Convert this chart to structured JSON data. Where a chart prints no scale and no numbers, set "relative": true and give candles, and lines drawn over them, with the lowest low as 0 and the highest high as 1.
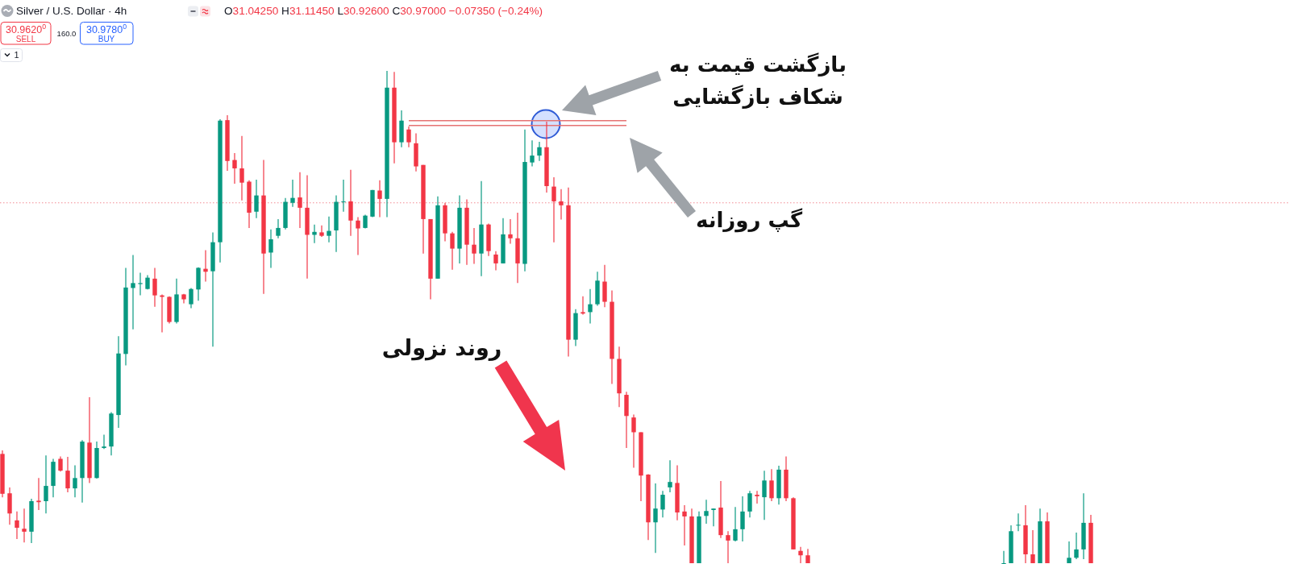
{
  "chart_data": {
    "type": "candlestick",
    "title": "Silver / U.S. Dollar · 4h",
    "subtitle": "O31.04250 H31.11450 L30.92600 C30.97000 −0.07350 (−0.24%)",
    "relative": true,
    "categories": [
      null,
      null,
      null,
      null,
      null,
      null,
      null,
      null,
      null,
      null,
      null,
      null,
      null,
      null,
      null,
      null,
      null,
      null,
      null,
      null,
      null,
      null,
      null,
      null,
      null,
      null,
      null,
      null,
      null,
      null,
      null,
      null,
      null,
      null,
      null,
      null,
      null,
      null,
      null,
      null,
      null,
      null,
      null,
      null,
      null,
      null,
      null,
      null,
      null,
      null,
      null,
      null,
      null,
      null,
      null,
      null,
      null,
      null,
      null,
      null,
      null,
      null,
      null,
      null,
      null,
      null,
      null,
      null,
      null,
      null,
      null,
      null,
      null,
      null,
      null,
      null,
      null,
      null,
      null,
      null,
      null,
      null,
      null,
      null,
      null,
      null,
      null,
      null,
      null,
      null,
      null,
      null,
      null,
      null,
      null,
      null,
      null,
      null,
      null,
      null,
      null,
      null,
      null,
      null,
      null,
      null,
      null,
      null,
      null,
      null,
      null,
      null,
      null,
      null,
      null,
      null,
      null,
      null,
      null,
      null,
      null,
      null,
      null,
      null,
      null,
      null,
      null,
      null,
      null,
      null,
      null,
      null,
      null,
      null,
      null,
      null,
      null,
      null,
      null,
      null,
      null,
      null,
      null,
      null,
      null,
      null,
      null,
      null,
      null,
      null,
      null
    ],
    "ohlc": [
      [
        0.222,
        0.229,
        0.134,
        0.141
      ],
      [
        0.142,
        0.154,
        0.078,
        0.101
      ],
      [
        0.087,
        0.105,
        0.049,
        0.072
      ],
      [
        0.07,
        0.111,
        0.042,
        0.064
      ],
      [
        0.064,
        0.131,
        0.041,
        0.126
      ],
      [
        0.127,
        0.173,
        0.108,
        0.124
      ],
      [
        0.126,
        0.219,
        0.101,
        0.157
      ],
      [
        0.157,
        0.212,
        0.134,
        0.206
      ],
      [
        0.212,
        0.217,
        0.186,
        0.188
      ],
      [
        0.188,
        0.216,
        0.144,
        0.152
      ],
      [
        0.152,
        0.199,
        0.134,
        0.173
      ],
      [
        0.173,
        0.25,
        0.123,
        0.247
      ],
      [
        0.245,
        0.337,
        0.163,
        0.173
      ],
      [
        0.173,
        0.247,
        0.172,
        0.234
      ],
      [
        0.234,
        0.261,
        0.232,
        0.237
      ],
      [
        0.237,
        0.307,
        0.219,
        0.304
      ],
      [
        0.301,
        0.461,
        0.275,
        0.426
      ],
      [
        0.425,
        0.6,
        0.402,
        0.56
      ],
      [
        0.559,
        0.626,
        0.475,
        0.569
      ],
      [
        0.567,
        0.59,
        0.544,
        0.569
      ],
      [
        0.557,
        0.585,
        0.556,
        0.58
      ],
      [
        0.578,
        0.6,
        0.521,
        0.544
      ],
      [
        0.544,
        0.546,
        0.469,
        0.541
      ],
      [
        0.541,
        0.542,
        0.487,
        0.49
      ],
      [
        0.49,
        0.578,
        0.487,
        0.546
      ],
      [
        0.546,
        0.547,
        0.528,
        0.536
      ],
      [
        0.526,
        0.559,
        0.518,
        0.557
      ],
      [
        0.556,
        0.601,
        0.533,
        0.6
      ],
      [
        0.598,
        0.636,
        0.572,
        0.592
      ],
      [
        0.593,
        0.672,
        0.44,
        0.652
      ],
      [
        0.652,
        0.902,
        0.611,
        0.899
      ],
      [
        0.9,
        0.91,
        0.797,
        0.817
      ],
      [
        0.819,
        0.833,
        0.771,
        0.802
      ],
      [
        0.802,
        0.868,
        0.737,
        0.773
      ],
      [
        0.775,
        0.778,
        0.681,
        0.712
      ],
      [
        0.714,
        0.779,
        0.701,
        0.747
      ],
      [
        0.747,
        0.819,
        0.547,
        0.629
      ],
      [
        0.631,
        0.678,
        0.6,
        0.658
      ],
      [
        0.665,
        0.699,
        0.66,
        0.681
      ],
      [
        0.681,
        0.742,
        0.678,
        0.734
      ],
      [
        0.732,
        0.779,
        0.724,
        0.742
      ],
      [
        0.743,
        0.794,
        0.681,
        0.722
      ],
      [
        0.722,
        0.788,
        0.578,
        0.667
      ],
      [
        0.667,
        0.688,
        0.65,
        0.673
      ],
      [
        0.672,
        0.686,
        0.663,
        0.665
      ],
      [
        0.665,
        0.704,
        0.652,
        0.675
      ],
      [
        0.676,
        0.747,
        0.632,
        0.734
      ],
      [
        0.734,
        0.779,
        0.714,
        0.735
      ],
      [
        0.735,
        0.799,
        0.665,
        0.696
      ],
      [
        0.696,
        0.703,
        0.626,
        0.68
      ],
      [
        0.681,
        0.708,
        0.68,
        0.706
      ],
      [
        0.704,
        0.758,
        0.703,
        0.758
      ],
      [
        0.757,
        0.778,
        0.703,
        0.74
      ],
      [
        0.74,
        1.0,
        0.703,
        0.966
      ],
      [
        0.966,
        0.998,
        0.812,
        0.855
      ],
      [
        0.855,
        0.92,
        0.845,
        0.899
      ],
      [
        0.881,
        0.887,
        0.845,
        0.855
      ],
      [
        0.853,
        0.873,
        0.796,
        0.806
      ],
      [
        0.809,
        0.809,
        0.629,
        0.699
      ],
      [
        0.699,
        0.699,
        0.536,
        0.578
      ],
      [
        0.578,
        0.745,
        0.578,
        0.727
      ],
      [
        0.727,
        0.732,
        0.654,
        0.67
      ],
      [
        0.67,
        0.673,
        0.596,
        0.639
      ],
      [
        0.639,
        0.747,
        0.609,
        0.722
      ],
      [
        0.722,
        0.739,
        0.606,
        0.647
      ],
      [
        0.647,
        0.681,
        0.608,
        0.629
      ],
      [
        0.629,
        0.776,
        0.583,
        0.688
      ],
      [
        0.688,
        0.69,
        0.624,
        0.634
      ],
      [
        0.627,
        0.634,
        0.595,
        0.609
      ],
      [
        0.609,
        0.701,
        0.609,
        0.668
      ],
      [
        0.668,
        0.699,
        0.649,
        0.66
      ],
      [
        0.66,
        0.712,
        0.569,
        0.609
      ],
      [
        0.608,
        0.881,
        0.593,
        0.815
      ],
      [
        0.814,
        0.859,
        0.806,
        0.828
      ],
      [
        0.828,
        0.856,
        0.817,
        0.845
      ],
      [
        0.845,
        0.897,
        0.753,
        0.766
      ],
      [
        0.765,
        0.784,
        0.652,
        0.735
      ],
      [
        0.735,
        0.76,
        0.698,
        0.727
      ],
      [
        0.727,
        0.763,
        0.42,
        0.454
      ],
      [
        0.454,
        0.516,
        0.441,
        0.508
      ],
      [
        0.51,
        0.542,
        0.505,
        0.507
      ],
      [
        0.51,
        0.557,
        0.487,
        0.526
      ],
      [
        0.526,
        0.592,
        0.523,
        0.574
      ],
      [
        0.572,
        0.606,
        0.52,
        0.531
      ],
      [
        0.531,
        0.554,
        0.364,
        0.415
      ],
      [
        0.415,
        0.44,
        0.317,
        0.345
      ],
      [
        0.342,
        0.348,
        0.234,
        0.299
      ],
      [
        0.296,
        0.302,
        0.194,
        0.266
      ],
      [
        0.266,
        0.266,
        0.126,
        0.178
      ],
      [
        0.18,
        0.181,
        0.047,
        0.083
      ],
      [
        0.083,
        0.162,
        0.021,
        0.111
      ],
      [
        0.109,
        0.147,
        0.093,
        0.139
      ],
      [
        0.154,
        0.209,
        0.144,
        0.165
      ],
      [
        0.163,
        0.199,
        0.087,
        0.103
      ],
      [
        0.105,
        0.118,
        0.036,
        0.095
      ],
      [
        0.095,
        0.111,
        0,
        0
      ],
      [
        0,
        0.105,
        0,
        0.095
      ],
      [
        0.096,
        0.129,
        0.08,
        0.106
      ],
      [
        0.108,
        0.111,
        0.075,
        0.111
      ],
      [
        0.113,
        0.167,
        0.051,
        0.057
      ],
      [
        0.057,
        0.065,
        0,
        0.046
      ],
      [
        0.046,
        0.114,
        0.044,
        0.069
      ],
      [
        0.069,
        0.136,
        0.044,
        0.105
      ],
      [
        0.105,
        0.147,
        0.093,
        0.142
      ],
      [
        0.139,
        0.147,
        0.121,
        0.136
      ],
      [
        0.134,
        0.188,
        0.088,
        0.168
      ],
      [
        0.168,
        0.191,
        0.126,
        0.132
      ],
      [
        0.132,
        0.198,
        0.119,
        0.19
      ],
      [
        0.19,
        0.217,
        0.126,
        0.132
      ],
      [
        0.132,
        0.134,
        0.028,
        0.028
      ],
      [
        0.025,
        0.033,
        0,
        0.016
      ],
      [
        0.016,
        0.029,
        0,
        0
      ],
      null,
      null,
      null,
      null,
      null,
      null,
      null,
      null,
      null,
      null,
      null,
      null,
      null,
      null,
      null,
      null,
      null,
      null,
      null,
      null,
      null,
      null,
      null,
      null,
      null,
      null,
      [
        0,
        0.025,
        0,
        0
      ],
      [
        0,
        0.077,
        0,
        0.065
      ],
      [
        0.077,
        0.101,
        0.065,
        0.078
      ],
      [
        0.077,
        0.118,
        0,
        0.018
      ],
      [
        0.018,
        0.067,
        0,
        0
      ],
      [
        0,
        0.111,
        0,
        0.085
      ],
      [
        0.085,
        0.103,
        0,
        0
      ],
      null,
      null,
      [
        0,
        0.044,
        0,
        0.011
      ],
      [
        0.011,
        0.062,
        0.008,
        0.028
      ],
      [
        0.028,
        0.142,
        0.008,
        0.082
      ],
      [
        0.082,
        0.098,
        0,
        0
      ]
    ],
    "colors": [
      "#f23645",
      "#f23645",
      "#f23645",
      "#f23645",
      "#089981",
      "#f23645",
      "#089981",
      "#089981",
      "#f23645",
      "#f23645",
      "#089981",
      "#089981",
      "#f23645",
      "#089981",
      "#089981",
      "#089981",
      "#089981",
      "#089981",
      "#089981",
      "#089981",
      "#089981",
      "#f23645",
      "#f23645",
      "#f23645",
      "#089981",
      "#f23645",
      "#089981",
      "#089981",
      "#f23645",
      "#089981",
      "#089981",
      "#f23645",
      "#f23645",
      "#f23645",
      "#f23645",
      "#089981",
      "#f23645",
      "#089981",
      "#089981",
      "#089981",
      "#089981",
      "#f23645",
      "#f23645",
      "#089981",
      "#f23645",
      "#089981",
      "#089981",
      "#089981",
      "#f23645",
      "#f23645",
      "#089981",
      "#089981",
      "#f23645",
      "#089981",
      "#f23645",
      "#089981",
      "#f23645",
      "#f23645",
      "#f23645",
      "#f23645",
      "#089981",
      "#f23645",
      "#f23645",
      "#089981",
      "#f23645",
      "#f23645",
      "#089981",
      "#f23645",
      "#f23645",
      "#089981",
      "#f23645",
      "#f23645",
      "#089981",
      "#089981",
      "#089981",
      "#f23645",
      "#f23645",
      "#f23645",
      "#f23645",
      "#089981",
      "#f23645",
      "#089981",
      "#089981",
      "#f23645",
      "#f23645",
      "#f23645",
      "#f23645",
      "#f23645",
      "#f23645",
      "#f23645",
      "#089981",
      "#089981",
      "#089981",
      "#f23645",
      "#f23645",
      "#f23645",
      "#089981",
      "#089981",
      "#089981",
      "#f23645",
      "#f23645",
      "#089981",
      "#089981",
      "#089981",
      "#f23645",
      "#089981",
      "#f23645",
      "#089981",
      "#f23645",
      "#f23645",
      "#f23645",
      "#f23645",
      null,
      null,
      null,
      null,
      null,
      null,
      null,
      null,
      null,
      null,
      null,
      null,
      null,
      null,
      null,
      null,
      null,
      null,
      null,
      null,
      null,
      null,
      null,
      null,
      null,
      null,
      "#089981",
      "#089981",
      "#089981",
      "#f23645",
      "#f23645",
      "#089981",
      "#f23645",
      null,
      null,
      "#089981",
      "#089981",
      "#089981",
      "#f23645"
    ],
    "series": [
      {
        "type": "line",
        "color": "#e57373",
        "values": [
          null,
          null,
          null,
          null,
          null,
          null,
          null,
          null,
          null,
          null,
          null,
          null,
          null,
          null,
          null,
          null,
          null,
          null,
          null,
          null,
          null,
          null,
          null,
          null,
          null,
          null,
          null,
          null,
          null,
          null,
          null,
          null,
          null,
          null,
          null,
          null,
          null,
          null,
          null,
          null,
          null,
          null,
          null,
          null,
          null,
          null,
          null,
          null,
          null,
          null,
          null,
          null,
          null,
          null,
          null,
          null,
          0.899,
          0.899,
          0.899,
          0.899,
          0.899,
          0.899,
          0.899,
          0.899,
          0.899,
          0.899,
          0.899,
          0.899,
          0.899,
          0.899,
          0.899,
          0.899,
          0.899,
          0.899,
          0.899,
          0.899,
          0.899,
          0.899,
          0.899,
          0.899,
          0.899,
          0.899,
          0.899,
          0.899,
          0.899,
          0.899,
          0.899,
          null,
          null,
          null,
          null,
          null,
          null,
          null,
          null,
          null,
          null,
          null,
          null,
          null,
          null,
          null,
          null,
          null,
          null,
          null,
          null,
          null,
          null,
          null,
          null,
          null,
          null,
          null,
          null,
          null,
          null,
          null,
          null,
          null,
          null,
          null,
          null,
          null,
          null,
          null,
          null,
          null,
          null,
          null,
          null,
          null,
          null,
          null,
          null,
          null,
          null,
          null,
          null,
          null,
          null,
          null,
          null,
          null,
          null,
          null,
          null,
          null,
          null,
          null,
          null
        ]
      },
      {
        "type": "line",
        "color": "#e57373",
        "values": [
          null,
          null,
          null,
          null,
          null,
          null,
          null,
          null,
          null,
          null,
          null,
          null,
          null,
          null,
          null,
          null,
          null,
          null,
          null,
          null,
          null,
          null,
          null,
          null,
          null,
          null,
          null,
          null,
          null,
          null,
          null,
          null,
          null,
          null,
          null,
          null,
          null,
          null,
          null,
          null,
          null,
          null,
          null,
          null,
          null,
          null,
          null,
          null,
          null,
          null,
          null,
          null,
          null,
          null,
          null,
          null,
          0.889,
          0.889,
          0.889,
          0.889,
          0.889,
          0.889,
          0.889,
          0.889,
          0.889,
          0.889,
          0.889,
          0.889,
          0.889,
          0.889,
          0.889,
          0.889,
          0.889,
          0.889,
          0.889,
          0.889,
          0.889,
          0.889,
          0.889,
          0.889,
          0.889,
          0.889,
          0.889,
          0.889,
          0.889,
          0.889,
          0.889,
          null,
          null,
          null,
          null,
          null,
          null,
          null,
          null,
          null,
          null,
          null,
          null,
          null,
          null,
          null,
          null,
          null,
          null,
          null,
          null,
          null,
          null,
          null,
          null,
          null,
          null,
          null,
          null,
          null,
          null,
          null,
          null,
          null,
          null,
          null,
          null,
          null,
          null,
          null,
          null,
          null,
          null,
          null,
          null,
          null,
          null,
          null,
          null,
          null,
          null,
          null,
          null,
          null,
          null,
          null,
          null,
          null,
          null,
          null,
          null,
          null,
          null,
          null,
          null
        ]
      }
    ],
    "ref_lines": [
      {
        "axis": "y",
        "value": 0.732,
        "color": "#f28b93",
        "line_style": "dotted"
      }
    ],
    "annotations": [
      "بازگشت قیمت به\nشکاف بازگشایی",
      "گپ روزانه",
      "روند نزولی",
      "30.9620$^{0}$",
      "SELL",
      "160.0",
      "30.9780$^{0}$",
      "BUY",
      "1"
    ]
  }
}
